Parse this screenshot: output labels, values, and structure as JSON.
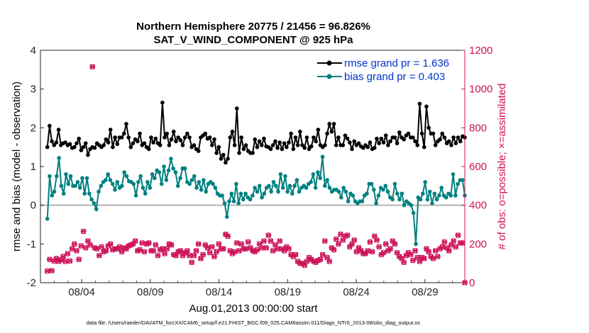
{
  "chart_data": {
    "type": "line",
    "title": "Northern Hemisphere 20775 / 21456 = 96.826%",
    "subtitle": "SAT_V_WIND_COMPONENT @ 925 hPa",
    "xlabel": "Aug.01,2013 00:00:00 start",
    "ylabel_left": "rmse and bias (model - observation)",
    "ylabel_right": "# of obs: o=possible; ×=assimilated",
    "footer": "data file: /Users/raeder/DAI/ATM_forcXX/CAM6_setup/f.e21.FHIST_BGC.f09_025.CAM6assim.011/Diags_NTrS_2013-08/obs_diag_output.nc",
    "x_tick_labels": [
      "08/04",
      "08/09",
      "08/14",
      "08/19",
      "08/24",
      "08/29"
    ],
    "x_tick_days": [
      4,
      9,
      14,
      19,
      24,
      29
    ],
    "xlim": [
      1,
      31.9
    ],
    "ylim_left": [
      -2,
      4
    ],
    "ylim_right": [
      0,
      1200
    ],
    "y_ticks_left": [
      "-2",
      "-1",
      "0",
      "1",
      "2",
      "3",
      "4"
    ],
    "y_ticks_right": [
      "0",
      "200",
      "400",
      "600",
      "800",
      "1000",
      "1200"
    ],
    "legend": [
      "rmse grand pr = 1.636",
      "bias grand pr = 0.403"
    ],
    "legend_position": "top-right",
    "colors": {
      "rmse": "#000000",
      "bias": "#008080",
      "obs": "#cc1156",
      "zero": "#b3b3b3"
    },
    "series": [
      {
        "name": "rmse grand pr = 1.636",
        "axis": "left",
        "values": [
          1.5,
          2.05,
          1.65,
          1.55,
          1.62,
          1.95,
          1.55,
          1.6,
          1.62,
          1.55,
          1.58,
          1.48,
          1.5,
          1.6,
          1.72,
          1.42,
          1.5,
          1.6,
          1.3,
          1.45,
          1.5,
          1.48,
          1.6,
          1.55,
          1.5,
          1.55,
          1.7,
          1.62,
          1.95,
          1.5,
          1.75,
          1.58,
          1.75,
          1.75,
          1.85,
          2.1,
          1.75,
          1.5,
          1.6,
          1.7,
          1.65,
          1.85,
          1.55,
          1.6,
          1.5,
          1.45,
          1.75,
          1.62,
          1.72,
          1.6,
          1.55,
          2.65,
          1.75,
          1.85,
          1.55,
          1.7,
          1.9,
          1.65,
          1.75,
          1.68,
          1.55,
          1.75,
          1.85,
          1.75,
          1.5,
          1.55,
          1.45,
          1.4,
          1.75,
          1.8,
          1.85,
          1.72,
          1.75,
          1.55,
          1.7,
          1.35,
          1.5,
          1.2,
          1.3,
          1.1,
          1.2,
          1.75,
          1.9,
          1.55,
          2.5,
          1.35,
          1.75,
          1.45,
          1.55,
          1.4,
          1.35,
          1.35,
          1.7,
          1.5,
          1.65,
          1.55,
          1.72,
          1.52,
          1.5,
          1.45,
          1.55,
          1.65,
          1.48,
          1.62,
          1.45,
          1.6,
          1.5,
          1.62,
          1.85,
          1.45,
          1.75,
          1.55,
          1.9,
          1.55,
          1.48,
          1.75,
          1.45,
          1.52,
          1.75,
          1.65,
          1.95,
          1.55,
          1.5,
          1.55,
          1.85,
          2.1,
          1.9,
          2.1,
          1.55,
          1.75,
          1.55,
          1.55,
          1.8,
          1.72,
          1.62,
          1.45,
          1.65,
          1.55,
          1.6,
          1.52,
          1.48,
          1.55,
          1.5,
          1.62,
          1.45,
          1.48,
          1.72,
          1.6,
          1.72,
          1.62,
          1.8,
          1.55,
          1.65,
          1.75,
          1.75,
          1.6,
          1.88,
          1.75,
          1.7,
          1.8,
          1.85,
          1.75,
          1.75,
          1.65,
          1.55,
          2.62,
          1.85,
          1.5,
          2.55,
          2.0,
          1.85,
          1.85,
          1.55,
          1.65,
          1.7,
          1.85,
          1.75,
          1.6,
          1.65,
          1.55,
          1.75,
          1.6,
          1.75,
          1.65,
          1.78,
          1.75
        ]
      },
      {
        "name": "bias grand pr = 0.403",
        "axis": "left",
        "values": [
          -0.35,
          0.75,
          0.25,
          0.35,
          0.75,
          1.22,
          0.5,
          0.3,
          0.8,
          0.55,
          0.75,
          0.5,
          0.5,
          0.6,
          0.45,
          0.7,
          0.3,
          0.7,
          0.3,
          0.15,
          0.05,
          -0.1,
          0.35,
          0.5,
          0.6,
          0.65,
          0.8,
          0.65,
          0.55,
          0.4,
          0.6,
          0.45,
          0.5,
          0.85,
          0.75,
          0.62,
          0.6,
          0.55,
          0.25,
          0.6,
          0.75,
          0.45,
          0.3,
          0.6,
          0.45,
          0.8,
          0.7,
          0.9,
          0.85,
          0.55,
          1.0,
          0.65,
          0.9,
          1.2,
          0.95,
          0.85,
          0.5,
          0.7,
          0.95,
          0.95,
          0.6,
          0.55,
          0.65,
          0.75,
          0.45,
          0.6,
          0.4,
          0.65,
          0.35,
          0.55,
          0.6,
          0.55,
          0.45,
          0.3,
          0.25,
          0.25,
          0.05,
          -0.3,
          0.1,
          0.3,
          0.1,
          0.55,
          0.05,
          0.3,
          0.15,
          0.3,
          0.2,
          0.15,
          0.25,
          0.45,
          0.35,
          0.5,
          0.2,
          0.3,
          0.45,
          0.5,
          0.35,
          0.6,
          0.5,
          0.35,
          0.8,
          0.45,
          0.75,
          0.35,
          0.5,
          0.3,
          0.5,
          0.65,
          0.35,
          0.45,
          0.5,
          0.45,
          0.55,
          0.6,
          0.8,
          0.45,
          0.85,
          0.7,
          1.25,
          0.5,
          0.65,
          0.45,
          0.35,
          0.4,
          0.4,
          0.35,
          0.2,
          0.45,
          0.35,
          0.1,
          0.3,
          0.25,
          0.1,
          0.05,
          0.1,
          0.1,
          0.25,
          0.3,
          0.55,
          0.55,
          0.4,
          0.05,
          0.25,
          0.45,
          0.4,
          0.5,
          0.35,
          0.2,
          0.15,
          0.55,
          0.3,
          0.15,
          0.3,
          0.0,
          0.1,
          0.05,
          0.0,
          -0.2,
          -1.0,
          0.2,
          0.15,
          0.3,
          0.6,
          0.15,
          0.35,
          0.05,
          0.3,
          0.15,
          0.25,
          0.45,
          0.25,
          0.2,
          0.3,
          0.25,
          0.8,
          0.25,
          0.55,
          0.65,
          0.65,
          0.25
        ]
      },
      {
        "name": "obs possible",
        "axis": "right",
        "marker": "circle",
        "values": [
          60,
          120,
          62,
          112,
          125,
          110,
          118,
          135,
          110,
          150,
          112,
          175,
          200,
          165,
          120,
          190,
          265,
          180,
          215,
          195,
          1115,
          180,
          175,
          140,
          185,
          160,
          165,
          190,
          200,
          170,
          175,
          175,
          185,
          160,
          180,
          175,
          190,
          195,
          200,
          215,
          165,
          170,
          205,
          160,
          200,
          205,
          165,
          165,
          195,
          140,
          170,
          175,
          150,
          175,
          200,
          195,
          145,
          140,
          160,
          165,
          140,
          155,
          165,
          140,
          105,
          140,
          165,
          200,
          125,
          145,
          195,
          180,
          155,
          185,
          135,
          160,
          200,
          175,
          175,
          250,
          240,
          165,
          150,
          160,
          205,
          165,
          200,
          175,
          175,
          210,
          180,
          165,
          160,
          170,
          200,
          180,
          215,
          180,
          245,
          215,
          165,
          195,
          175,
          215,
          175,
          165,
          185,
          175,
          145,
          135,
          145,
          110,
          100,
          100,
          90,
          110,
          130,
          120,
          110,
          105,
          115,
          120,
          145,
          215,
          130,
          110,
          180,
          170,
          225,
          200,
          250,
          220,
          240,
          245,
          185,
          200,
          220,
          160,
          180,
          165,
          150,
          150,
          165,
          210,
          160,
          240,
          220,
          185,
          145,
          155,
          200,
          165,
          175,
          215,
          200,
          155,
          135,
          125,
          105,
          140,
          155,
          145,
          115,
          165,
          130,
          110,
          130,
          125,
          175,
          160,
          135,
          125,
          165,
          135,
          175,
          185,
          210,
          180,
          165,
          195,
          215,
          185,
          245,
          205,
          205,
          0
        ]
      },
      {
        "name": "obs assimilated",
        "axis": "right",
        "marker": "x",
        "values": [
          60,
          120,
          62,
          112,
          125,
          110,
          118,
          135,
          110,
          150,
          112,
          175,
          200,
          165,
          120,
          190,
          265,
          180,
          215,
          195,
          1115,
          180,
          175,
          140,
          185,
          160,
          165,
          190,
          200,
          170,
          175,
          175,
          185,
          160,
          180,
          175,
          190,
          195,
          200,
          215,
          165,
          170,
          205,
          160,
          200,
          205,
          165,
          165,
          195,
          140,
          170,
          175,
          150,
          175,
          200,
          195,
          145,
          140,
          160,
          165,
          140,
          155,
          165,
          140,
          105,
          140,
          165,
          200,
          125,
          145,
          195,
          180,
          155,
          185,
          135,
          160,
          200,
          175,
          175,
          250,
          240,
          165,
          150,
          160,
          205,
          165,
          200,
          175,
          175,
          210,
          180,
          165,
          160,
          170,
          200,
          180,
          215,
          180,
          245,
          215,
          165,
          195,
          175,
          215,
          175,
          165,
          185,
          175,
          145,
          135,
          145,
          110,
          100,
          100,
          90,
          110,
          130,
          120,
          110,
          105,
          115,
          120,
          145,
          215,
          130,
          110,
          180,
          170,
          225,
          200,
          250,
          220,
          240,
          245,
          185,
          200,
          220,
          160,
          180,
          165,
          150,
          150,
          165,
          210,
          160,
          240,
          220,
          185,
          145,
          155,
          200,
          165,
          175,
          215,
          200,
          155,
          135,
          125,
          105,
          140,
          155,
          145,
          115,
          165,
          130,
          110,
          130,
          125,
          175,
          160,
          135,
          125,
          165,
          135,
          175,
          185,
          210,
          180,
          165,
          195,
          215,
          185,
          245,
          205,
          205,
          0
        ]
      }
    ]
  }
}
